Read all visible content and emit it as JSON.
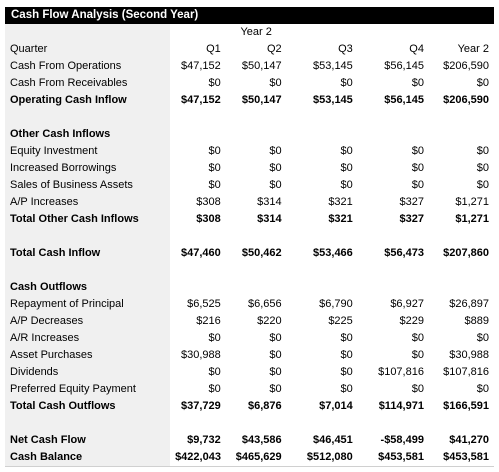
{
  "title": "Cash Flow Analysis (Second Year)",
  "year_header": "Year 2",
  "columns": [
    "Quarter",
    "Q1",
    "Q2",
    "Q3",
    "Q4",
    "Year 2"
  ],
  "rows": [
    {
      "label": "Cash From Operations",
      "values": [
        "$47,152",
        "$50,147",
        "$53,145",
        "$56,145",
        "$206,590"
      ],
      "bold": false
    },
    {
      "label": "Cash From Receivables",
      "values": [
        "$0",
        "$0",
        "$0",
        "$0",
        "$0"
      ],
      "bold": false
    },
    {
      "label": "Operating Cash Inflow",
      "values": [
        "$47,152",
        "$50,147",
        "$53,145",
        "$56,145",
        "$206,590"
      ],
      "bold": true
    },
    {
      "blank": true
    },
    {
      "label": "Other Cash Inflows",
      "values": [
        "",
        "",
        "",
        "",
        ""
      ],
      "bold": true
    },
    {
      "label": "Equity Investment",
      "values": [
        "$0",
        "$0",
        "$0",
        "$0",
        "$0"
      ],
      "bold": false
    },
    {
      "label": "Increased Borrowings",
      "values": [
        "$0",
        "$0",
        "$0",
        "$0",
        "$0"
      ],
      "bold": false
    },
    {
      "label": "Sales of Business Assets",
      "values": [
        "$0",
        "$0",
        "$0",
        "$0",
        "$0"
      ],
      "bold": false
    },
    {
      "label": "A/P Increases",
      "values": [
        "$308",
        "$314",
        "$321",
        "$327",
        "$1,271"
      ],
      "bold": false
    },
    {
      "label": "Total Other Cash Inflows",
      "values": [
        "$308",
        "$314",
        "$321",
        "$327",
        "$1,271"
      ],
      "bold": true
    },
    {
      "blank": true
    },
    {
      "label": "Total Cash Inflow",
      "values": [
        "$47,460",
        "$50,462",
        "$53,466",
        "$56,473",
        "$207,860"
      ],
      "bold": true
    },
    {
      "blank": true
    },
    {
      "label": "Cash Outflows",
      "values": [
        "",
        "",
        "",
        "",
        ""
      ],
      "bold": true
    },
    {
      "label": "Repayment of Principal",
      "values": [
        "$6,525",
        "$6,656",
        "$6,790",
        "$6,927",
        "$26,897"
      ],
      "bold": false
    },
    {
      "label": "A/P Decreases",
      "values": [
        "$216",
        "$220",
        "$225",
        "$229",
        "$889"
      ],
      "bold": false
    },
    {
      "label": "A/R Increases",
      "values": [
        "$0",
        "$0",
        "$0",
        "$0",
        "$0"
      ],
      "bold": false
    },
    {
      "label": "Asset Purchases",
      "values": [
        "$30,988",
        "$0",
        "$0",
        "$0",
        "$30,988"
      ],
      "bold": false
    },
    {
      "label": "Dividends",
      "values": [
        "$0",
        "$0",
        "$0",
        "$107,816",
        "$107,816"
      ],
      "bold": false
    },
    {
      "label": "Preferred Equity Payment",
      "values": [
        "$0",
        "$0",
        "$0",
        "$0",
        "$0"
      ],
      "bold": false
    },
    {
      "label": "Total Cash Outflows",
      "values": [
        "$37,729",
        "$6,876",
        "$7,014",
        "$114,971",
        "$166,591"
      ],
      "bold": true
    },
    {
      "blank": true
    },
    {
      "label": "Net Cash Flow",
      "values": [
        "$9,732",
        "$43,586",
        "$46,451",
        "-$58,499",
        "$41,270"
      ],
      "bold": true
    },
    {
      "label": "Cash Balance",
      "values": [
        "$422,043",
        "$465,629",
        "$512,080",
        "$453,581",
        "$453,581"
      ],
      "bold": true
    }
  ],
  "colors": {
    "title_bg": "#000000",
    "title_fg": "#ffffff",
    "label_bg": "#f0f0f0"
  }
}
